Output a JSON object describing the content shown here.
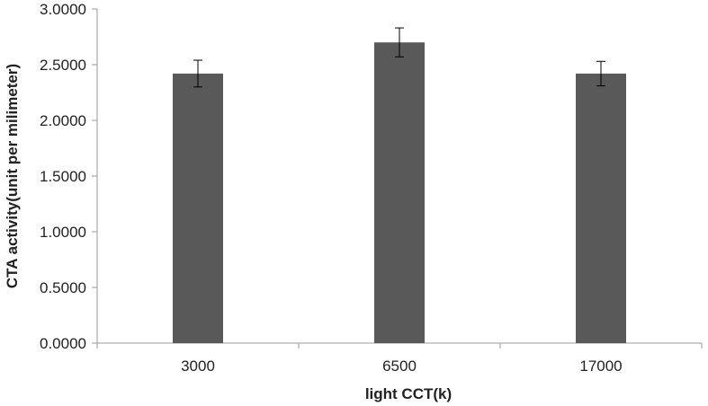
{
  "chart_data": {
    "type": "bar",
    "categories": [
      "3000",
      "6500",
      "17000"
    ],
    "values": [
      2.42,
      2.7,
      2.42
    ],
    "error": [
      0.12,
      0.13,
      0.11
    ],
    "xlabel": "light CCT(k)",
    "ylabel": "CTA activity(unit per milimeter)",
    "ylim": [
      0,
      3
    ],
    "yticks": [
      "0.0000",
      "0.5000",
      "1.0000",
      "1.5000",
      "2.0000",
      "2.5000",
      "3.0000"
    ],
    "grid": false,
    "legend": "none",
    "bar_color": "#595959",
    "axis_color": "#999999"
  }
}
